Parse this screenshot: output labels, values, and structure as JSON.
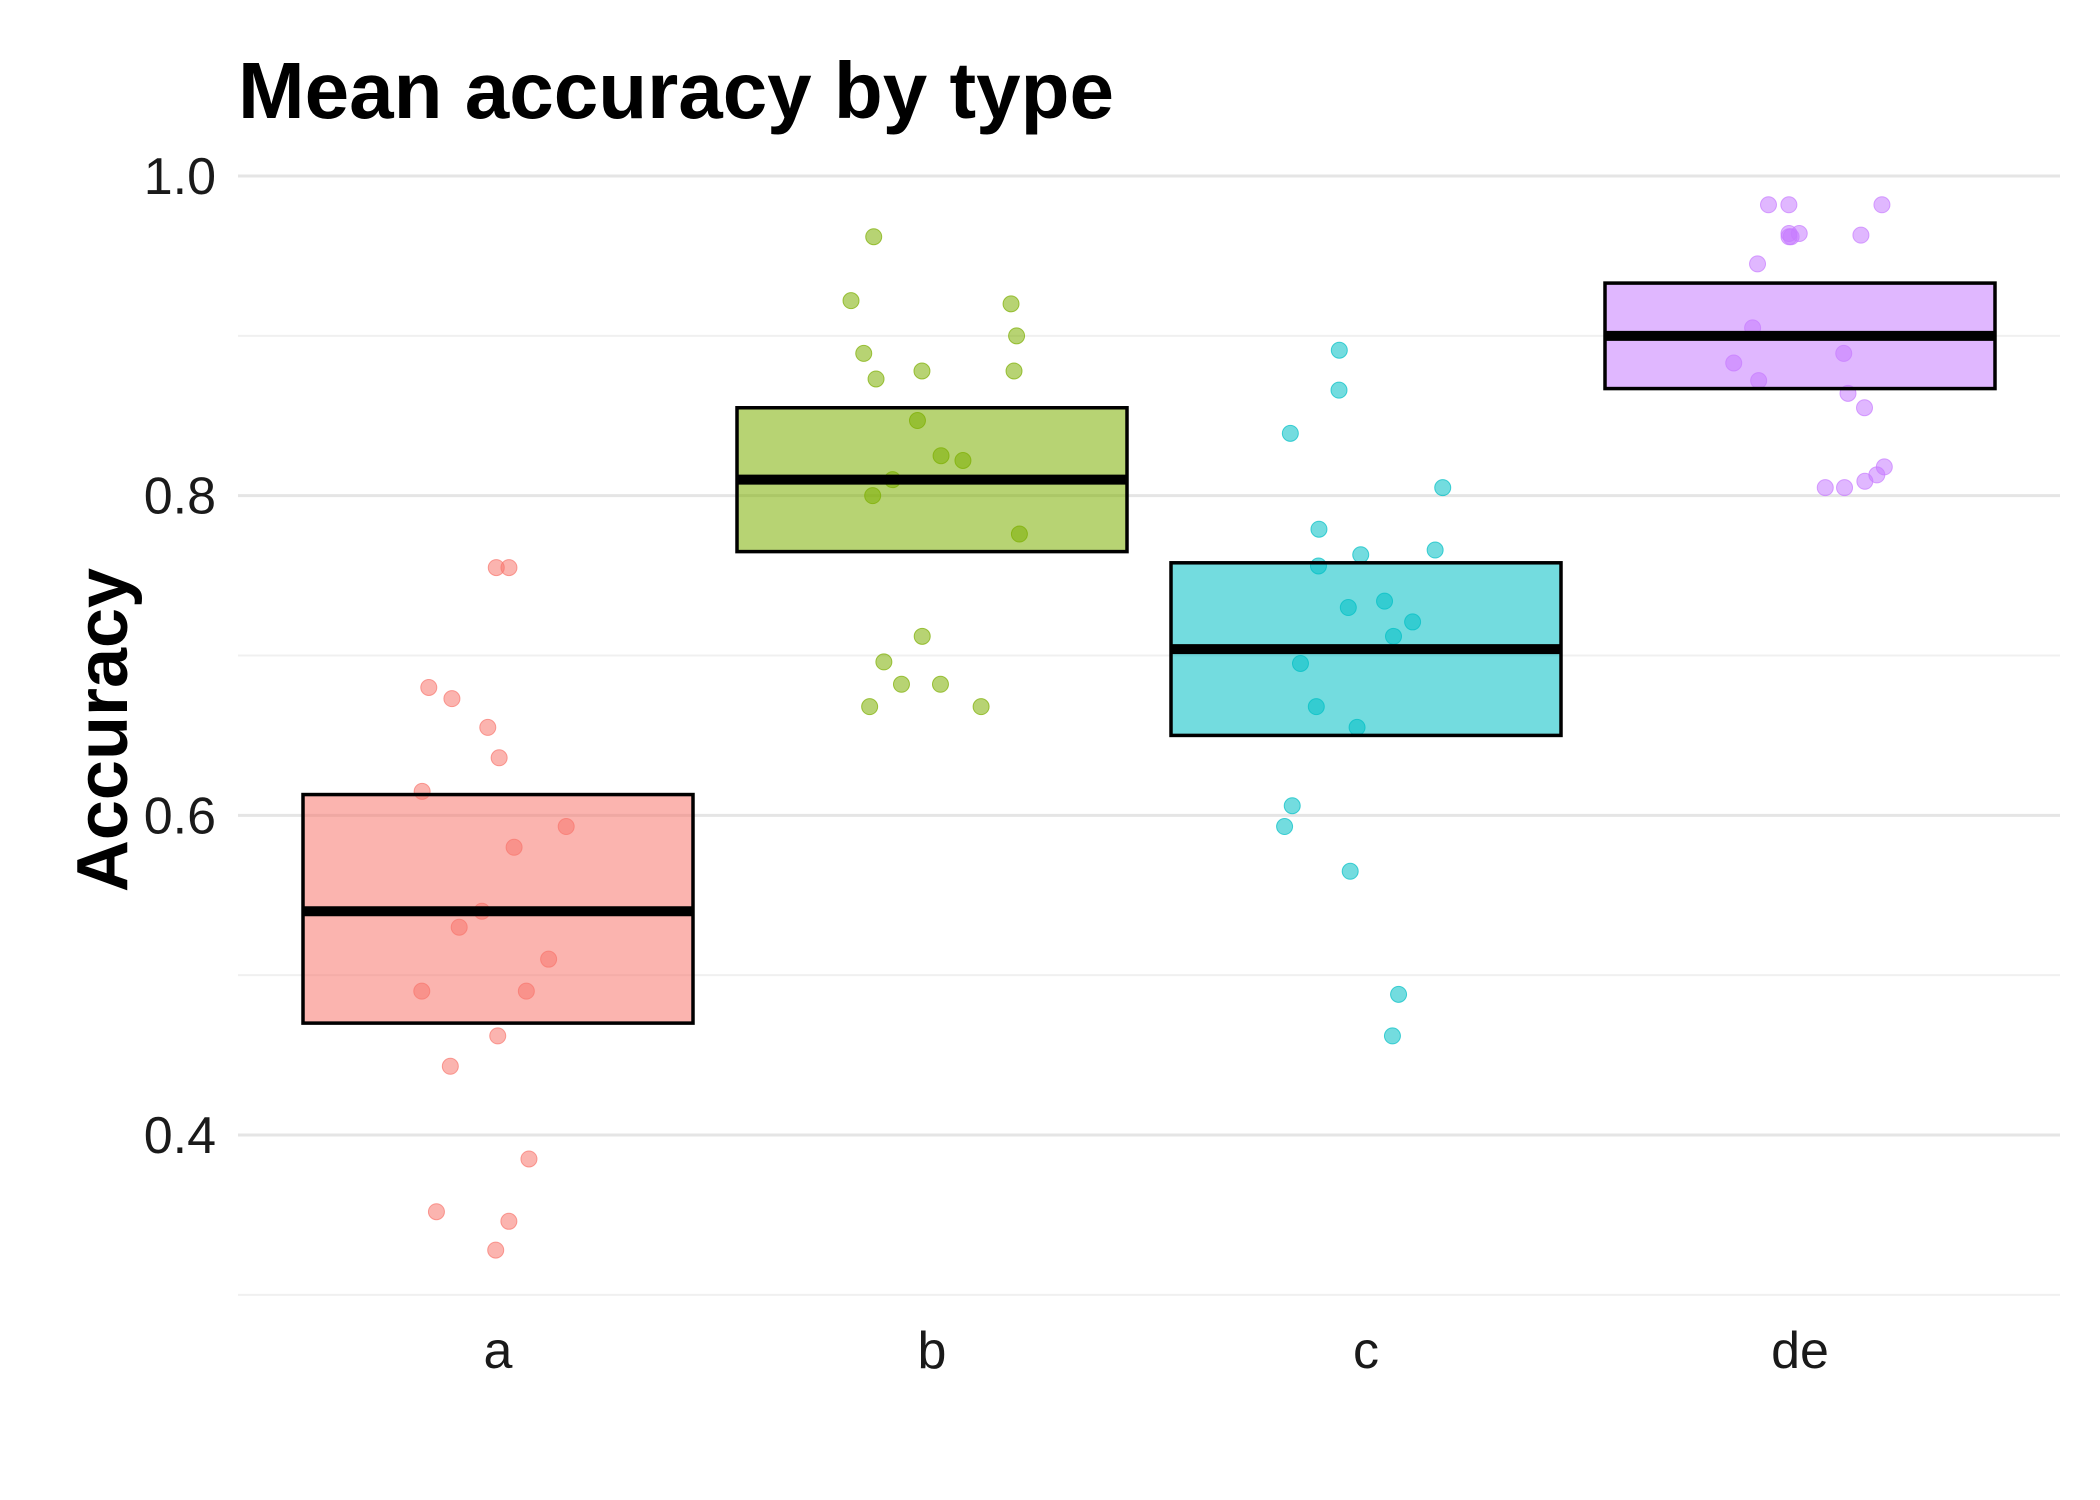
{
  "chart_data": {
    "type": "crossbar",
    "title": "Mean accuracy by type",
    "xlabel": "",
    "ylabel": "Accuracy",
    "categories": [
      "a",
      "b",
      "c",
      "de"
    ],
    "ylim": [
      0.3,
      1.0
    ],
    "yticks": [
      0.4,
      0.6,
      0.8,
      1.0
    ],
    "grid": true,
    "legend": "none",
    "colors": [
      "#F8766D",
      "#7CAE00",
      "#00BFC4",
      "#C77CFF"
    ],
    "summary": [
      {
        "category": "a",
        "mean": 0.54,
        "lower": 0.47,
        "upper": 0.613
      },
      {
        "category": "b",
        "mean": 0.81,
        "lower": 0.765,
        "upper": 0.855
      },
      {
        "category": "c",
        "mean": 0.704,
        "lower": 0.65,
        "upper": 0.758
      },
      {
        "category": "de",
        "mean": 0.9,
        "lower": 0.867,
        "upper": 0.933
      }
    ],
    "points": {
      "a": [
        0.755,
        0.755,
        0.68,
        0.673,
        0.655,
        0.636,
        0.615,
        0.593,
        0.58,
        0.54,
        0.53,
        0.51,
        0.49,
        0.49,
        0.462,
        0.443,
        0.385,
        0.352,
        0.346,
        0.328
      ],
      "b": [
        0.962,
        0.922,
        0.92,
        0.9,
        0.889,
        0.878,
        0.878,
        0.873,
        0.847,
        0.825,
        0.822,
        0.81,
        0.8,
        0.776,
        0.712,
        0.696,
        0.682,
        0.682,
        0.668,
        0.668
      ],
      "c": [
        0.891,
        0.866,
        0.839,
        0.805,
        0.779,
        0.766,
        0.763,
        0.756,
        0.734,
        0.73,
        0.721,
        0.712,
        0.695,
        0.668,
        0.655,
        0.606,
        0.593,
        0.565,
        0.488,
        0.462
      ],
      "de": [
        0.982,
        0.982,
        0.982,
        0.964,
        0.964,
        0.963,
        0.962,
        0.962,
        0.945,
        0.905,
        0.889,
        0.883,
        0.872,
        0.864,
        0.855,
        0.818,
        0.813,
        0.809,
        0.805,
        0.805
      ]
    }
  }
}
